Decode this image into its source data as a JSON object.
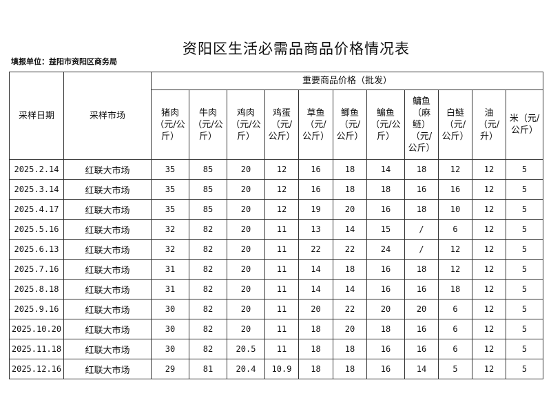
{
  "title": "资阳区生活必需品商品价格情况表",
  "reporting_unit": "填报单位：益阳市资阳区商务局",
  "table": {
    "col_date": "采样日期",
    "col_market": "采样市场",
    "group_header": "重要商品价格（批发）",
    "items": [
      "猪肉（元/公斤）",
      "牛肉（元/公斤）",
      "鸡肉（元/公斤）",
      "鸡蛋（元/公斤）",
      "草鱼（元/公斤）",
      "鲫鱼（元/公斤）",
      "鳊鱼（元/公斤）",
      "鳙鱼（麻鲢）（元/公斤）",
      "白鲢（元/公斤）",
      "油（元/升）",
      "米（元/公斤）"
    ],
    "rows": [
      {
        "date": "2025.2.14",
        "market": "红联大市场",
        "values": [
          "35",
          "85",
          "20",
          "12",
          "16",
          "18",
          "14",
          "18",
          "12",
          "12",
          "5"
        ]
      },
      {
        "date": "2025.3.14",
        "market": "红联大市场",
        "values": [
          "35",
          "85",
          "20",
          "12",
          "16",
          "18",
          "18",
          "16",
          "16",
          "12",
          "5"
        ]
      },
      {
        "date": "2025.4.17",
        "market": "红联大市场",
        "values": [
          "35",
          "85",
          "20",
          "12",
          "19",
          "20",
          "16",
          "18",
          "10",
          "12",
          "5"
        ]
      },
      {
        "date": "2025.5.16",
        "market": "红联大市场",
        "values": [
          "32",
          "82",
          "20",
          "11",
          "13",
          "14",
          "15",
          "/",
          "6",
          "12",
          "5"
        ]
      },
      {
        "date": "2025.6.13",
        "market": "红联大市场",
        "values": [
          "32",
          "82",
          "20",
          "11",
          "22",
          "22",
          "24",
          "/",
          "12",
          "12",
          "5"
        ]
      },
      {
        "date": "2025.7.16",
        "market": "红联大市场",
        "values": [
          "31",
          "82",
          "20",
          "11",
          "14",
          "18",
          "16",
          "18",
          "12",
          "12",
          "5"
        ]
      },
      {
        "date": "2025.8.18",
        "market": "红联大市场",
        "values": [
          "31",
          "82",
          "20",
          "11",
          "14",
          "14",
          "16",
          "16",
          "18",
          "12",
          "5"
        ]
      },
      {
        "date": "2025.9.16",
        "market": "红联大市场",
        "values": [
          "30",
          "82",
          "20",
          "11",
          "20",
          "22",
          "20",
          "20",
          "6",
          "12",
          "5"
        ]
      },
      {
        "date": "2025.10.20",
        "market": "红联大市场",
        "values": [
          "30",
          "82",
          "20",
          "11",
          "18",
          "20",
          "18",
          "16",
          "6",
          "12",
          "5"
        ]
      },
      {
        "date": "2025.11.18",
        "market": "红联大市场",
        "values": [
          "30",
          "82",
          "20.5",
          "11",
          "18",
          "18",
          "16",
          "16",
          "6",
          "12",
          "5"
        ]
      },
      {
        "date": "2025.12.16",
        "market": "红联大市场",
        "values": [
          "29",
          "81",
          "20.4",
          "10.9",
          "18",
          "18",
          "16",
          "14",
          "5",
          "12",
          "5"
        ]
      }
    ]
  }
}
